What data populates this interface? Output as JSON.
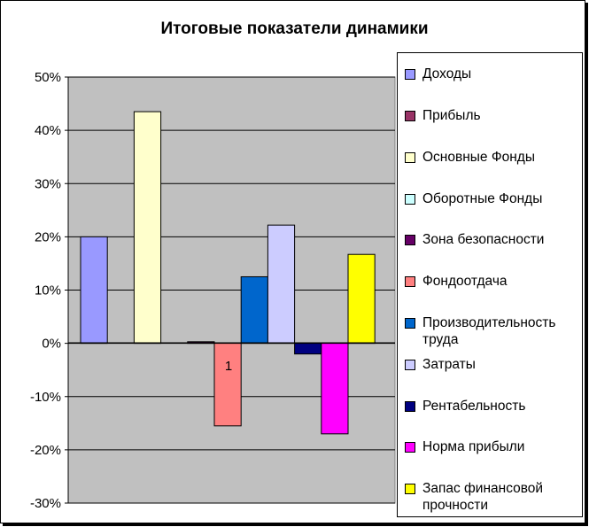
{
  "chart_data": {
    "type": "bar",
    "title": "Итоговые показатели динамики",
    "categories": [
      "1"
    ],
    "ylim": [
      -30,
      50
    ],
    "yticks": [
      "50%",
      "40%",
      "30%",
      "20%",
      "10%",
      "0%",
      "-10%",
      "-20%",
      "-30%"
    ],
    "grid": true,
    "legend_position": "right",
    "series": [
      {
        "name": "Доходы",
        "value": 20,
        "color": "#9999ff"
      },
      {
        "name": "Прибыль",
        "value": 0,
        "color": "#993366"
      },
      {
        "name": "Основные Фонды",
        "value": 43.5,
        "color": "#ffffcc"
      },
      {
        "name": "Оборотные Фонды",
        "value": 0,
        "color": "#ccffff"
      },
      {
        "name": "Зона безопасности",
        "value": 0.3,
        "color": "#660066"
      },
      {
        "name": "Фондоотдача",
        "value": -15.5,
        "color": "#ff8080"
      },
      {
        "name": "Производительность труда",
        "value": 12.5,
        "color": "#0066cc"
      },
      {
        "name": "Затраты",
        "value": 22.2,
        "color": "#ccccff"
      },
      {
        "name": "Рентабельность",
        "value": -2,
        "color": "#000080"
      },
      {
        "name": "Норма прибыли",
        "value": -17,
        "color": "#ff00ff"
      },
      {
        "name": "Запас финансовой прочности",
        "value": 16.7,
        "color": "#ffff00"
      }
    ]
  }
}
